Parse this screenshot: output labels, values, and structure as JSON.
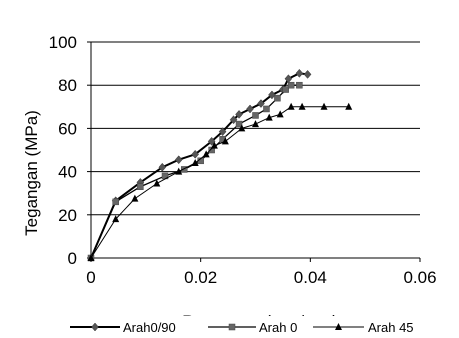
{
  "chart_data": {
    "type": "line",
    "title": "",
    "xlabel": "Regangan (mm/mm)",
    "ylabel": "Tegangan (MPa)",
    "xlim": [
      0,
      0.06
    ],
    "ylim": [
      0,
      100
    ],
    "x_ticks": [
      0,
      0.02,
      0.04,
      0.06
    ],
    "x_tick_labels": [
      "0",
      "0.02",
      "0.04",
      "0.06"
    ],
    "y_ticks": [
      0,
      20,
      40,
      60,
      80,
      100
    ],
    "y_tick_labels": [
      "0",
      "20",
      "40",
      "60",
      "80",
      "100"
    ],
    "grid": "horizontal",
    "legend_position": "bottom",
    "series": [
      {
        "name": "Arah0/90",
        "marker": "diamond",
        "color": "#000000",
        "x": [
          0,
          0.0045,
          0.009,
          0.013,
          0.016,
          0.019,
          0.022,
          0.024,
          0.026,
          0.027,
          0.029,
          0.031,
          0.033,
          0.035,
          0.036,
          0.038,
          0.0395
        ],
        "y": [
          0,
          26.5,
          35,
          42,
          45.5,
          48,
          54,
          58.5,
          64,
          66.5,
          69,
          71.5,
          75.5,
          78,
          83,
          85.5,
          85
        ]
      },
      {
        "name": "Arah 0",
        "marker": "square",
        "color": "#000000",
        "x": [
          0,
          0.0045,
          0.009,
          0.0135,
          0.017,
          0.02,
          0.022,
          0.024,
          0.027,
          0.03,
          0.032,
          0.034,
          0.0355,
          0.0365,
          0.038
        ],
        "y": [
          0,
          26,
          33,
          38,
          41,
          45,
          50,
          55,
          62,
          66,
          69,
          74,
          78,
          80,
          80
        ]
      },
      {
        "name": "Arah 45",
        "marker": "triangle",
        "color": "#000000",
        "x": [
          0,
          0.0045,
          0.008,
          0.012,
          0.016,
          0.019,
          0.021,
          0.0225,
          0.0245,
          0.0275,
          0.03,
          0.0325,
          0.0345,
          0.0365,
          0.0385,
          0.0425,
          0.047
        ],
        "y": [
          0,
          18,
          27.5,
          34.5,
          40,
          44,
          48,
          52,
          54,
          60,
          62,
          65,
          66.5,
          70,
          70,
          70,
          70
        ]
      }
    ]
  }
}
